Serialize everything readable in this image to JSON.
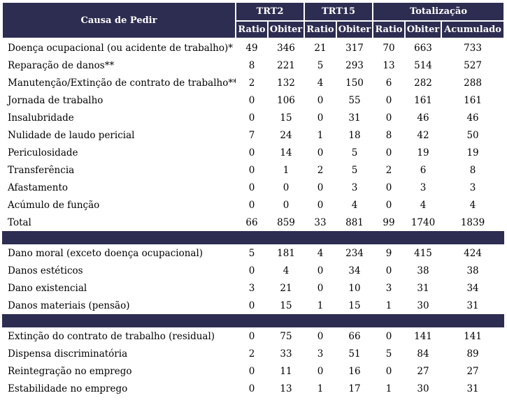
{
  "chart_data": {
    "type": "table",
    "header": {
      "row_label_column": "Causa de Pedir",
      "groups": [
        {
          "label": "TRT2",
          "subcolumns": [
            "Ratio",
            "Obiter"
          ]
        },
        {
          "label": "TRT15",
          "subcolumns": [
            "Ratio",
            "Obiter"
          ]
        },
        {
          "label": "Totalização",
          "subcolumns": [
            "Ratio",
            "Obiter",
            "Acumulado"
          ]
        }
      ]
    },
    "sections": [
      {
        "rows": [
          {
            "label": "Doença ocupacional (ou acidente de trabalho)*",
            "values": [
              49,
              346,
              21,
              317,
              70,
              663,
              733
            ]
          },
          {
            "label": "Reparação de danos**",
            "values": [
              8,
              221,
              5,
              293,
              13,
              514,
              527
            ]
          },
          {
            "label": "Manutenção/Extinção de contrato de trabalho***",
            "values": [
              2,
              132,
              4,
              150,
              6,
              282,
              288
            ]
          },
          {
            "label": "Jornada de trabalho",
            "values": [
              0,
              106,
              0,
              55,
              0,
              161,
              161
            ]
          },
          {
            "label": "Insalubridade",
            "values": [
              0,
              15,
              0,
              31,
              0,
              46,
              46
            ]
          },
          {
            "label": "Nulidade de laudo pericial",
            "values": [
              7,
              24,
              1,
              18,
              8,
              42,
              50
            ]
          },
          {
            "label": "Periculosidade",
            "values": [
              0,
              14,
              0,
              5,
              0,
              19,
              19
            ]
          },
          {
            "label": "Transferência",
            "values": [
              0,
              1,
              2,
              5,
              2,
              6,
              8
            ]
          },
          {
            "label": "Afastamento",
            "values": [
              0,
              0,
              0,
              3,
              0,
              3,
              3
            ]
          },
          {
            "label": "Acúmulo de função",
            "values": [
              0,
              0,
              0,
              4,
              0,
              4,
              4
            ]
          },
          {
            "label": "Total",
            "values": [
              66,
              859,
              33,
              881,
              99,
              1740,
              1839
            ]
          }
        ]
      },
      {
        "rows": [
          {
            "label": "Dano moral (exceto doença ocupacional)",
            "values": [
              5,
              181,
              4,
              234,
              9,
              415,
              424
            ]
          },
          {
            "label": "Danos estéticos",
            "values": [
              0,
              4,
              0,
              34,
              0,
              38,
              38
            ]
          },
          {
            "label": "Dano existencial",
            "values": [
              3,
              21,
              0,
              10,
              3,
              31,
              34
            ]
          },
          {
            "label": "Danos materiais (pensão)",
            "values": [
              0,
              15,
              1,
              15,
              1,
              30,
              31
            ]
          }
        ]
      },
      {
        "rows": [
          {
            "label": "Extinção do contrato de trabalho (residual)",
            "values": [
              0,
              75,
              0,
              66,
              0,
              141,
              141
            ]
          },
          {
            "label": "Dispensa discriminatória",
            "values": [
              2,
              33,
              3,
              51,
              5,
              84,
              89
            ]
          },
          {
            "label": "Reintegração no emprego",
            "values": [
              0,
              11,
              0,
              16,
              0,
              27,
              27
            ]
          },
          {
            "label": "Estabilidade no emprego",
            "values": [
              0,
              13,
              1,
              17,
              1,
              30,
              31
            ]
          }
        ]
      }
    ],
    "layout": {
      "legend": "none",
      "grid": "off"
    }
  },
  "colors": {
    "header_bg": "#2d2c51",
    "header_text": "#ffffff",
    "body_text": "#000000",
    "body_bg": "#ffffff"
  }
}
